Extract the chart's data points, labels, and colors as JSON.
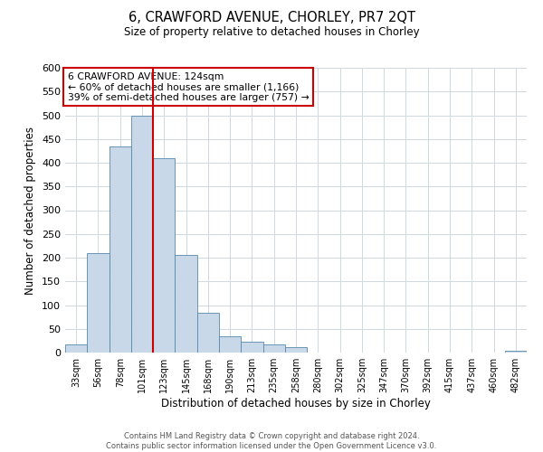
{
  "title": "6, CRAWFORD AVENUE, CHORLEY, PR7 2QT",
  "subtitle": "Size of property relative to detached houses in Chorley",
  "xlabel": "Distribution of detached houses by size in Chorley",
  "ylabel": "Number of detached properties",
  "footer_line1": "Contains HM Land Registry data © Crown copyright and database right 2024.",
  "footer_line2": "Contains public sector information licensed under the Open Government Licence v3.0.",
  "bin_labels": [
    "33sqm",
    "56sqm",
    "78sqm",
    "101sqm",
    "123sqm",
    "145sqm",
    "168sqm",
    "190sqm",
    "213sqm",
    "235sqm",
    "258sqm",
    "280sqm",
    "302sqm",
    "325sqm",
    "347sqm",
    "370sqm",
    "392sqm",
    "415sqm",
    "437sqm",
    "460sqm",
    "482sqm"
  ],
  "bar_values": [
    18,
    210,
    435,
    500,
    410,
    205,
    83,
    35,
    22,
    18,
    12,
    0,
    0,
    0,
    0,
    0,
    0,
    0,
    0,
    0,
    3
  ],
  "bar_color": "#c8d8e8",
  "bar_edge_color": "#5588aa",
  "annotation_title": "6 CRAWFORD AVENUE: 124sqm",
  "annotation_line1": "← 60% of detached houses are smaller (1,166)",
  "annotation_line2": "39% of semi-detached houses are larger (757) →",
  "annotation_box_color": "#ffffff",
  "annotation_box_edge": "#cc0000",
  "vline_color": "#cc0000",
  "vline_x": 3.5,
  "ylim": [
    0,
    600
  ],
  "yticks": [
    0,
    50,
    100,
    150,
    200,
    250,
    300,
    350,
    400,
    450,
    500,
    550,
    600
  ],
  "background_color": "#ffffff",
  "grid_color": "#d0d8e0"
}
